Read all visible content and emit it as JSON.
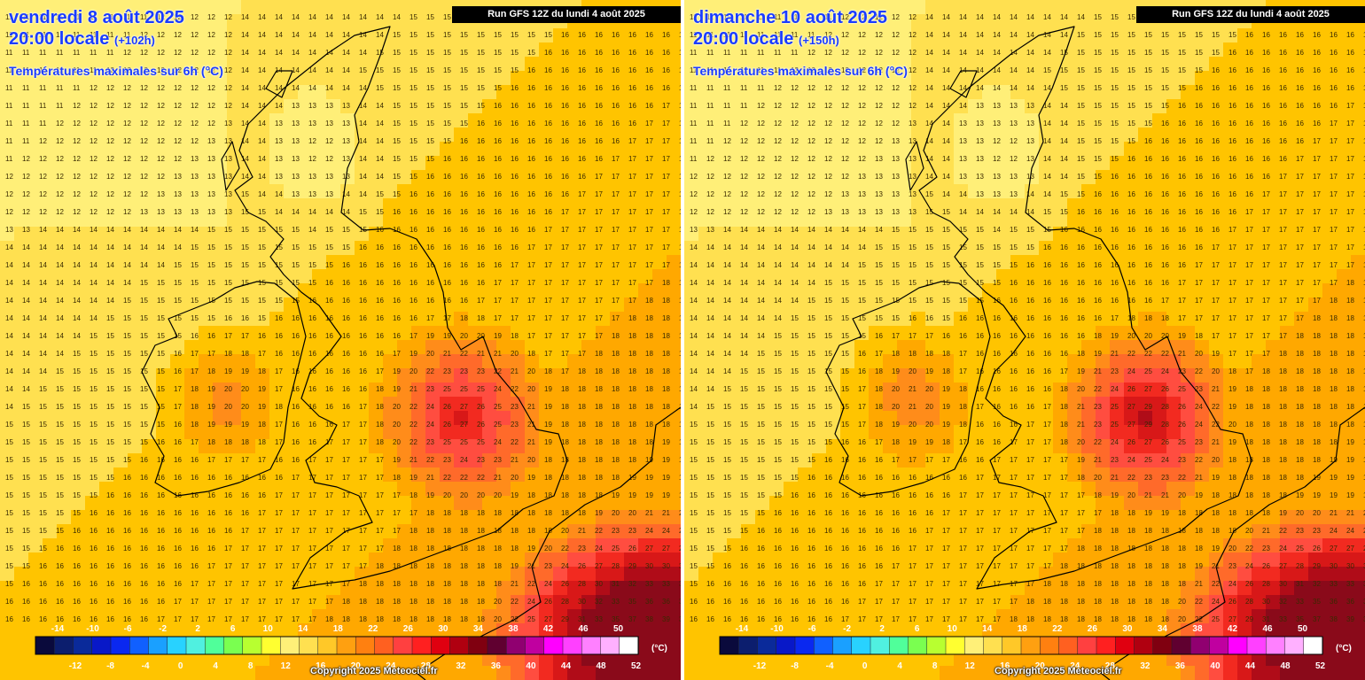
{
  "panels": [
    {
      "date": "vendredi 8 août 2025",
      "local_time": "20:00 locale",
      "offset": "(+102h)",
      "field": "Températures maximales sur 6h (°C)",
      "run": "Run GFS 12Z du lundi 4 août 2025",
      "copyright": "Copyright 2025 Meteociel.fr"
    },
    {
      "date": "dimanche 10 août 2025",
      "local_time": "20:00 locale",
      "offset": "(+150h)",
      "field": "Températures maximales sur 6h (°C)",
      "run": "Run GFS 12Z du lundi 4 août 2025",
      "copyright": "Copyright 2025 Meteociel.fr"
    }
  ],
  "color_scale": {
    "unit": "(°C)",
    "top_labels": [
      "-14",
      "-10",
      "-6",
      "-2",
      "2",
      "6",
      "10",
      "14",
      "18",
      "22",
      "26",
      "30",
      "34",
      "38",
      "42",
      "46",
      "50"
    ],
    "bottom_labels": [
      "-12",
      "-8",
      "-4",
      "0",
      "4",
      "8",
      "12",
      "16",
      "20",
      "24",
      "28",
      "32",
      "36",
      "40",
      "44",
      "48",
      "52"
    ],
    "colors": [
      "#0a0a3c",
      "#0c1e6e",
      "#0a2a9a",
      "#0818c8",
      "#0a28f0",
      "#1060ff",
      "#1aa0ff",
      "#28d2ff",
      "#50f0e0",
      "#50ff9a",
      "#7aff50",
      "#b8ff30",
      "#ffff30",
      "#fff078",
      "#ffe050",
      "#ffc828",
      "#ffa010",
      "#ff8010",
      "#ff6020",
      "#ff4040",
      "#ff2020",
      "#e00010",
      "#b00010",
      "#800010",
      "#600030",
      "#900070",
      "#c000a0",
      "#ff00ff",
      "#ff40ff",
      "#ff80ff",
      "#ffb0ff",
      "#ffffff"
    ]
  }
}
